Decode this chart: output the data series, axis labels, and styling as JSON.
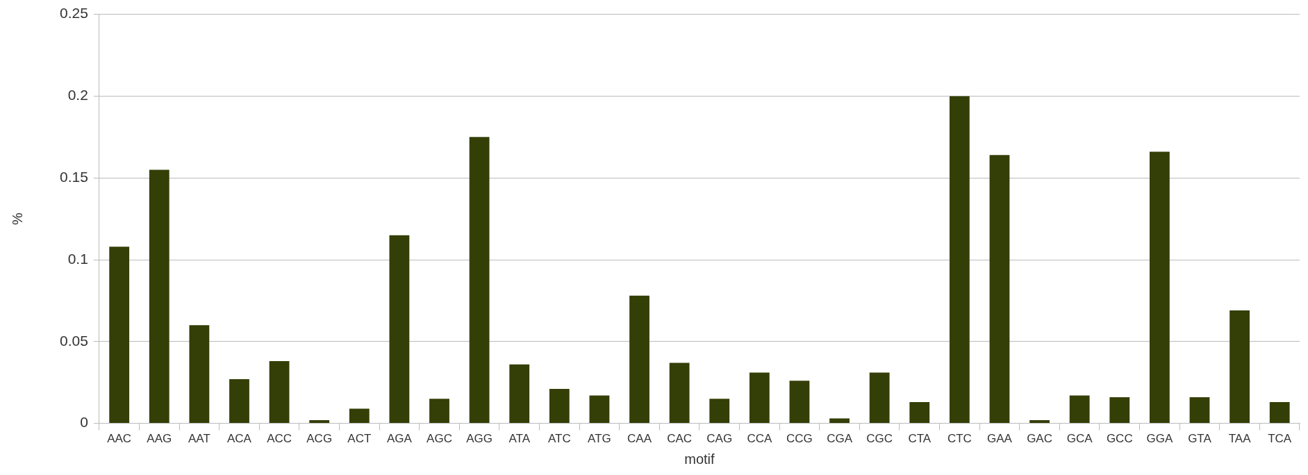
{
  "chart_data": {
    "type": "bar",
    "xlabel": "motif",
    "ylabel": "%",
    "categories": [
      "AAC",
      "AAG",
      "AAT",
      "ACA",
      "ACC",
      "ACG",
      "ACT",
      "AGA",
      "AGC",
      "AGG",
      "ATA",
      "ATC",
      "ATG",
      "CAA",
      "CAC",
      "CAG",
      "CCA",
      "CCG",
      "CGA",
      "CGC",
      "CTA",
      "CTC",
      "GAA",
      "GAC",
      "GCA",
      "GCC",
      "GGA",
      "GTA",
      "TAA",
      "TCA"
    ],
    "values": [
      0.108,
      0.155,
      0.06,
      0.027,
      0.038,
      0.002,
      0.009,
      0.115,
      0.015,
      0.175,
      0.036,
      0.021,
      0.017,
      0.078,
      0.037,
      0.015,
      0.031,
      0.026,
      0.003,
      0.031,
      0.013,
      0.2,
      0.164,
      0.002,
      0.017,
      0.016,
      0.166,
      0.016,
      0.069,
      0.013
    ],
    "color": "#333f07",
    "ylim": [
      0,
      0.25
    ],
    "yticks": [
      0,
      0.05,
      0.1,
      0.15,
      0.2,
      0.25
    ],
    "grid": "y",
    "legend": false
  }
}
